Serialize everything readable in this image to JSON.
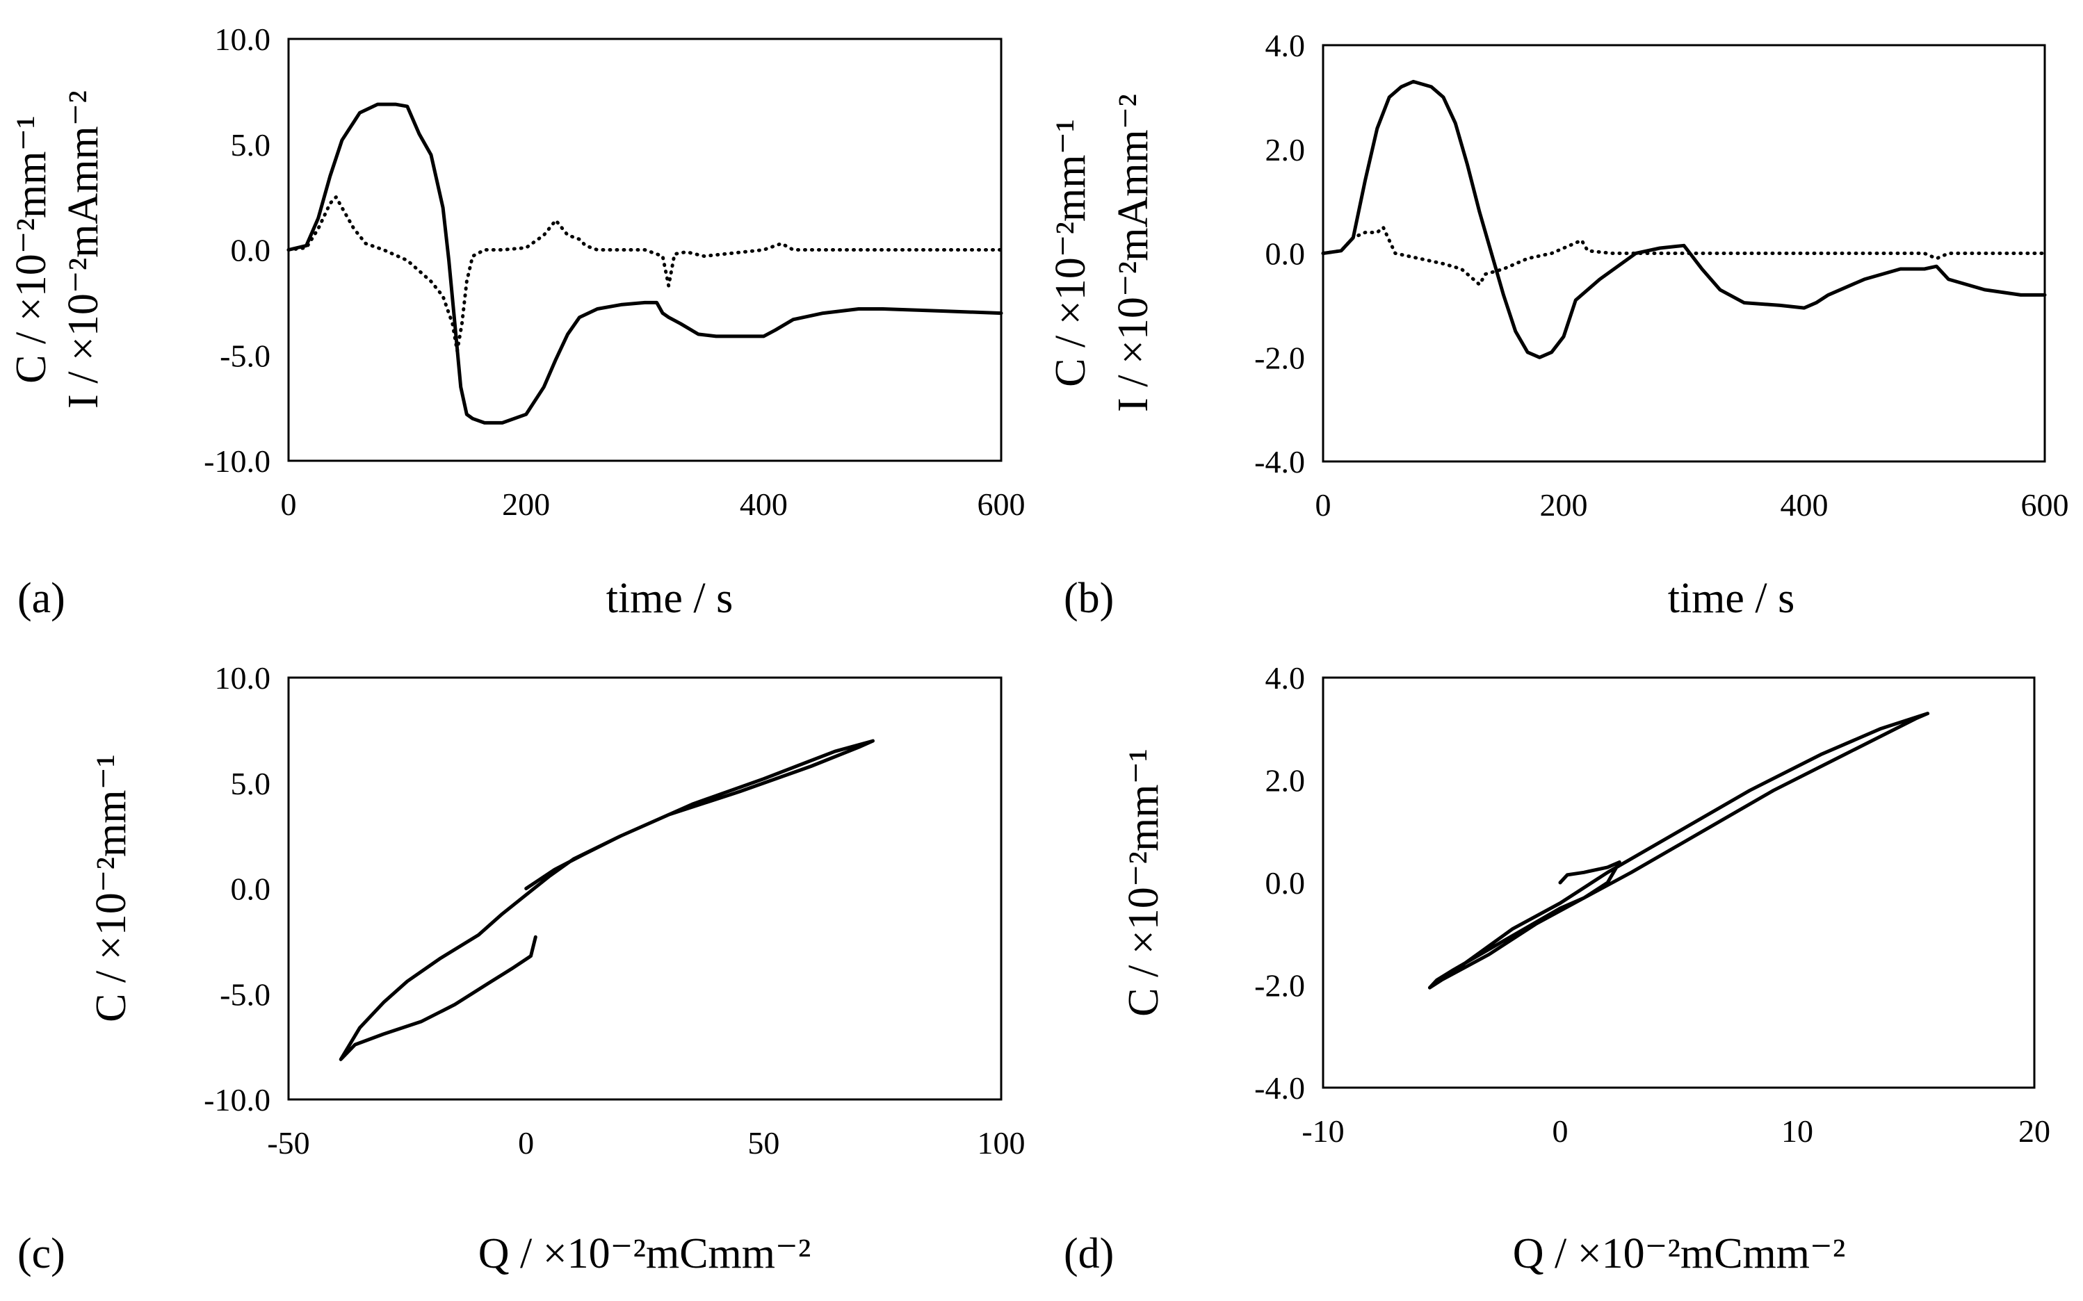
{
  "chart_data": [
    {
      "panel": "(a)",
      "type": "line",
      "xlabel": "time / s",
      "ylabel_lines": [
        "C / ×10⁻²mm⁻¹",
        "I / ×10⁻²mAmm⁻²"
      ],
      "xlim": [
        0,
        600
      ],
      "ylim": [
        -10,
        10
      ],
      "xticks": [
        0,
        200,
        400,
        600
      ],
      "xtick_labels": [
        "0",
        "200",
        "400",
        "600"
      ],
      "yticks": [
        -10,
        -5,
        0,
        5,
        10
      ],
      "ytick_labels": [
        "-10.0",
        "-5.0",
        "0.0",
        "5.0",
        "10.0"
      ],
      "series": [
        {
          "name": "C",
          "style": "solid",
          "x": [
            0,
            15,
            25,
            35,
            45,
            60,
            75,
            90,
            100,
            110,
            120,
            130,
            135,
            140,
            145,
            150,
            155,
            165,
            180,
            200,
            215,
            225,
            235,
            245,
            260,
            280,
            300,
            310,
            315,
            320,
            330,
            345,
            360,
            380,
            400,
            410,
            425,
            450,
            480,
            500,
            550,
            600
          ],
          "y": [
            0,
            0.2,
            1.5,
            3.5,
            5.2,
            6.5,
            6.9,
            6.9,
            6.8,
            5.5,
            4.5,
            2.0,
            -0.5,
            -3.5,
            -6.5,
            -7.8,
            -8.0,
            -8.2,
            -8.2,
            -7.8,
            -6.5,
            -5.2,
            -4.0,
            -3.2,
            -2.8,
            -2.6,
            -2.5,
            -2.5,
            -3.0,
            -3.2,
            -3.5,
            -4.0,
            -4.1,
            -4.1,
            -4.1,
            -3.8,
            -3.3,
            -3.0,
            -2.8,
            -2.8,
            -2.9,
            -3.0
          ]
        },
        {
          "name": "I",
          "style": "dotted",
          "x": [
            0,
            15,
            25,
            35,
            40,
            45,
            55,
            65,
            80,
            100,
            110,
            120,
            130,
            138,
            142,
            146,
            150,
            155,
            165,
            180,
            200,
            215,
            225,
            235,
            245,
            250,
            260,
            280,
            300,
            315,
            320,
            325,
            335,
            350,
            400,
            415,
            425,
            450,
            500,
            550,
            600
          ],
          "y": [
            0,
            0.1,
            1.0,
            2.2,
            2.5,
            2.0,
            1.0,
            0.3,
            0.0,
            -0.5,
            -1.0,
            -1.5,
            -2.2,
            -3.5,
            -4.8,
            -3.5,
            -1.5,
            -0.3,
            0.0,
            0.0,
            0.1,
            0.7,
            1.4,
            0.7,
            0.5,
            0.2,
            0.0,
            0.0,
            0.0,
            -0.3,
            -1.7,
            -0.2,
            -0.1,
            -0.3,
            0.0,
            0.3,
            0.0,
            0.0,
            0.0,
            0.0,
            0.0
          ]
        }
      ]
    },
    {
      "panel": "(b)",
      "type": "line",
      "xlabel": "time / s",
      "ylabel_lines": [
        "C / ×10⁻²mm⁻¹",
        "I / ×10⁻²mAmm⁻²"
      ],
      "xlim": [
        0,
        600
      ],
      "ylim": [
        -4,
        4
      ],
      "xticks": [
        0,
        200,
        400,
        600
      ],
      "xtick_labels": [
        "0",
        "200",
        "400",
        "600"
      ],
      "yticks": [
        -4,
        -2,
        0,
        2,
        4
      ],
      "ytick_labels": [
        "-4.0",
        "-2.0",
        "0.0",
        "2.0",
        "4.0"
      ],
      "series": [
        {
          "name": "C",
          "style": "solid",
          "x": [
            0,
            15,
            25,
            35,
            45,
            55,
            65,
            75,
            90,
            100,
            110,
            120,
            130,
            140,
            150,
            160,
            170,
            180,
            190,
            200,
            210,
            230,
            260,
            280,
            300,
            305,
            315,
            330,
            350,
            380,
            400,
            410,
            420,
            450,
            480,
            500,
            510,
            520,
            550,
            580,
            600
          ],
          "y": [
            0,
            0.05,
            0.3,
            1.4,
            2.4,
            3.0,
            3.2,
            3.3,
            3.2,
            3.0,
            2.5,
            1.7,
            0.8,
            0.0,
            -0.8,
            -1.5,
            -1.9,
            -2.0,
            -1.9,
            -1.6,
            -0.9,
            -0.5,
            0.0,
            0.1,
            0.15,
            0.0,
            -0.3,
            -0.7,
            -0.95,
            -1.0,
            -1.05,
            -0.95,
            -0.8,
            -0.5,
            -0.3,
            -0.3,
            -0.25,
            -0.5,
            -0.7,
            -0.8,
            -0.8
          ]
        },
        {
          "name": "I",
          "style": "dotted",
          "x": [
            0,
            15,
            25,
            35,
            45,
            50,
            60,
            80,
            100,
            115,
            125,
            130,
            135,
            150,
            170,
            190,
            200,
            210,
            215,
            220,
            240,
            270,
            300,
            350,
            400,
            450,
            500,
            510,
            520,
            550,
            600
          ],
          "y": [
            0,
            0.05,
            0.3,
            0.4,
            0.4,
            0.5,
            0.0,
            -0.1,
            -0.2,
            -0.3,
            -0.5,
            -0.6,
            -0.4,
            -0.3,
            -0.1,
            0.0,
            0.1,
            0.2,
            0.25,
            0.05,
            0.0,
            0.0,
            0.0,
            0.0,
            0.0,
            0.0,
            0.0,
            -0.1,
            0.0,
            0.0,
            0.0
          ]
        }
      ]
    },
    {
      "panel": "(c)",
      "type": "line",
      "xlabel": "Q / ×10⁻²mCmm⁻²",
      "ylabel_lines": [
        "C / ×10⁻²mm⁻¹"
      ],
      "xlim": [
        -50,
        100
      ],
      "ylim": [
        -10,
        10
      ],
      "xticks": [
        -50,
        0,
        50,
        100
      ],
      "xtick_labels": [
        "-50",
        "0",
        "50",
        "100"
      ],
      "yticks": [
        -10,
        -5,
        0,
        5,
        10
      ],
      "ytick_labels": [
        "-10.0",
        "-5.0",
        "0.0",
        "5.0",
        "10.0"
      ],
      "series": [
        {
          "name": "C vs Q",
          "style": "solid",
          "x": [
            0,
            2,
            6,
            12,
            20,
            30,
            45,
            60,
            70,
            73,
            65,
            50,
            35,
            20,
            10,
            5,
            0,
            -5,
            -10,
            -18,
            -25,
            -30,
            -35,
            -39,
            -36,
            -30,
            -22,
            -15,
            -8,
            -3,
            1,
            2
          ],
          "y": [
            0,
            0.3,
            0.9,
            1.6,
            2.5,
            3.5,
            4.6,
            5.8,
            6.7,
            7.0,
            6.5,
            5.2,
            4.0,
            2.5,
            1.4,
            0.6,
            -0.3,
            -1.2,
            -2.2,
            -3.3,
            -4.4,
            -5.4,
            -6.6,
            -8.1,
            -7.4,
            -6.9,
            -6.3,
            -5.5,
            -4.5,
            -3.8,
            -3.2,
            -2.3
          ]
        }
      ]
    },
    {
      "panel": "(d)",
      "type": "line",
      "xlabel": "Q / ×10⁻²mCmm⁻²",
      "ylabel_lines": [
        "C / ×10⁻²mm⁻¹"
      ],
      "xlim": [
        -10,
        20
      ],
      "ylim": [
        -4,
        4
      ],
      "xticks": [
        -10,
        0,
        10,
        20
      ],
      "xtick_labels": [
        "-10",
        "0",
        "10",
        "20"
      ],
      "yticks": [
        -4,
        -2,
        0,
        2,
        4
      ],
      "ytick_labels": [
        "-4.0",
        "-2.0",
        "0.0",
        "2.0",
        "4.0"
      ],
      "series": [
        {
          "name": "C vs Q",
          "style": "solid",
          "x": [
            0,
            0.3,
            1.0,
            2.0,
            2.5,
            2.0,
            1.0,
            0.0,
            -1.5,
            -3.0,
            -4.5,
            -5.2,
            -5.5,
            -5.0,
            -3.5,
            -2.0,
            0.0,
            2.0,
            5.0,
            8.0,
            11.0,
            13.5,
            15.5,
            15.0,
            12.0,
            9.0,
            6.0,
            3.0,
            1.0,
            -1.0,
            -3.0,
            -5.0,
            -5.4
          ],
          "y": [
            0,
            0.15,
            0.2,
            0.3,
            0.4,
            0.0,
            -0.3,
            -0.5,
            -0.9,
            -1.3,
            -1.7,
            -1.9,
            -2.05,
            -1.9,
            -1.4,
            -0.9,
            -0.4,
            0.2,
            1.0,
            1.8,
            2.5,
            3.0,
            3.3,
            3.2,
            2.5,
            1.8,
            1.0,
            0.2,
            -0.3,
            -0.8,
            -1.4,
            -1.9,
            -2.0
          ]
        }
      ]
    }
  ]
}
